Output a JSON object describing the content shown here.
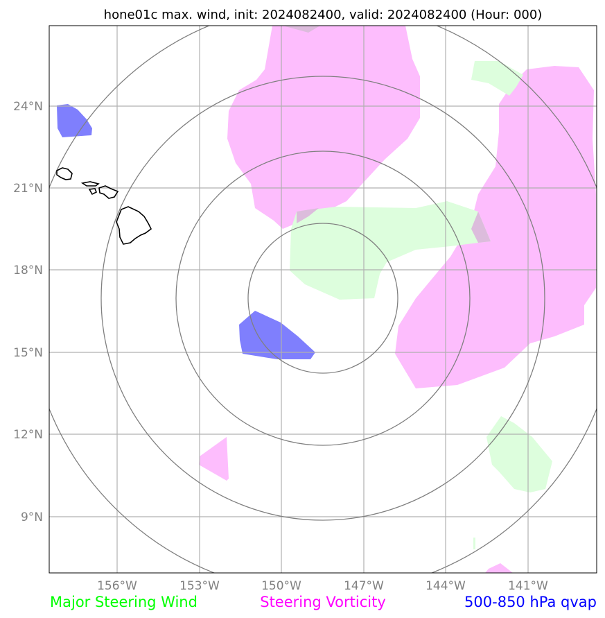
{
  "title": "hone01c max. wind, init: 2024082400, valid: 2024082400 (Hour: 000)",
  "lat_labels": [
    "24°N",
    "21°N",
    "18°N",
    "15°N",
    "12°N",
    "9°N"
  ],
  "lon_labels": [
    "156°W",
    "153°W",
    "150°W",
    "147°W",
    "144°W",
    "141°W"
  ],
  "legend": [
    {
      "label": "Major Steering Wind",
      "color": "#00ff00"
    },
    {
      "label": "Steering Vorticity",
      "color": "#ff00ff"
    },
    {
      "label": "500-850 hPa qvap",
      "color": "#0000ff"
    }
  ],
  "colors": {
    "steering_wind_fill": "#ddfedd",
    "steering_vorticity_fill": "#fdbdfd",
    "qvap_fill": "#7f7ffd",
    "range_rings": "#808080",
    "gridlines": "#b0b0b0",
    "coastline": "#000000"
  },
  "map": {
    "lon_range": [
      "158.5°W",
      "138.5°W"
    ],
    "lat_range": [
      "7°N",
      "26.5°N"
    ],
    "storm_center": {
      "lat": "17°N",
      "lon": "148°W"
    },
    "range_ring_count": 4,
    "coastline": "Hawaiian Islands"
  }
}
